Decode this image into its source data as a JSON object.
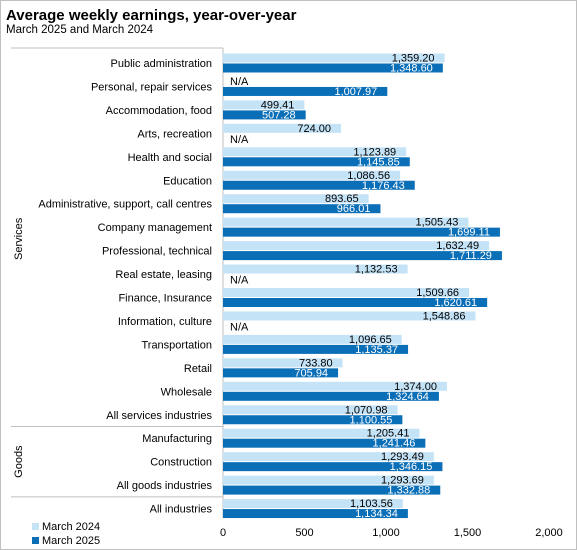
{
  "chart_data": {
    "type": "bar",
    "orientation": "horizontal",
    "title": "Average weekly earnings, year-over-year",
    "subtitle": "March 2025 and March 2024",
    "xlim": [
      0,
      2000
    ],
    "xticks": [
      "0",
      "500",
      "1,000",
      "1,500",
      "2,000"
    ],
    "xtick_values": [
      0,
      500,
      1000,
      1500,
      2000
    ],
    "legend_position": "bottom-left",
    "missing_label": "N/A",
    "groups": [
      {
        "name": "Services",
        "start": 0,
        "end": 16
      },
      {
        "name": "Goods",
        "start": 16,
        "end": 19
      }
    ],
    "categories": [
      "Public administration",
      "Personal, repair services",
      "Accommodation, food",
      "Arts, recreation",
      "Health and social",
      "Education",
      "Administrative, support, call centres",
      "Company management",
      "Professional, technical",
      "Real estate, leasing",
      "Finance, Insurance",
      "Information, culture",
      "Transportation",
      "Retail",
      "Wholesale",
      "All services industries",
      "Manufacturing",
      "Construction",
      "All goods industries",
      "All industries"
    ],
    "series": [
      {
        "name": "March 2024",
        "color": "#c5e3f7",
        "values": [
          1359.2,
          null,
          499.41,
          724.0,
          1123.89,
          1086.56,
          893.65,
          1505.43,
          1632.49,
          1132.53,
          1509.66,
          1548.86,
          1096.65,
          733.8,
          1374.0,
          1070.98,
          1205.41,
          1293.49,
          1293.69,
          1103.56
        ],
        "labels": [
          "1,359.20",
          "N/A",
          "499.41",
          "724.00",
          "1,123.89",
          "1,086.56",
          "893.65",
          "1,505.43",
          "1,632.49",
          "1,132.53",
          "1,509.66",
          "1,548.86",
          "1,096.65",
          "733.80",
          "1,374.00",
          "1,070.98",
          "1,205.41",
          "1,293.49",
          "1,293.69",
          "1,103.56"
        ]
      },
      {
        "name": "March 2025",
        "color": "#0b6fb8",
        "values": [
          1348.6,
          1007.97,
          507.28,
          null,
          1145.85,
          1176.43,
          966.01,
          1699.11,
          1711.29,
          null,
          1620.61,
          null,
          1135.37,
          705.94,
          1324.64,
          1100.55,
          1241.46,
          1346.15,
          1332.88,
          1134.34
        ],
        "labels": [
          "1,348.60",
          "1,007.97",
          "507.28",
          "N/A",
          "1,145.85",
          "1,176.43",
          "966.01",
          "1,699.11",
          "1,711.29",
          "N/A",
          "1,620.61",
          "N/A",
          "1,135.37",
          "705.94",
          "1,324.64",
          "1,100.55",
          "1,241.46",
          "1,346.15",
          "1,332.88",
          "1,134.34"
        ]
      }
    ]
  }
}
